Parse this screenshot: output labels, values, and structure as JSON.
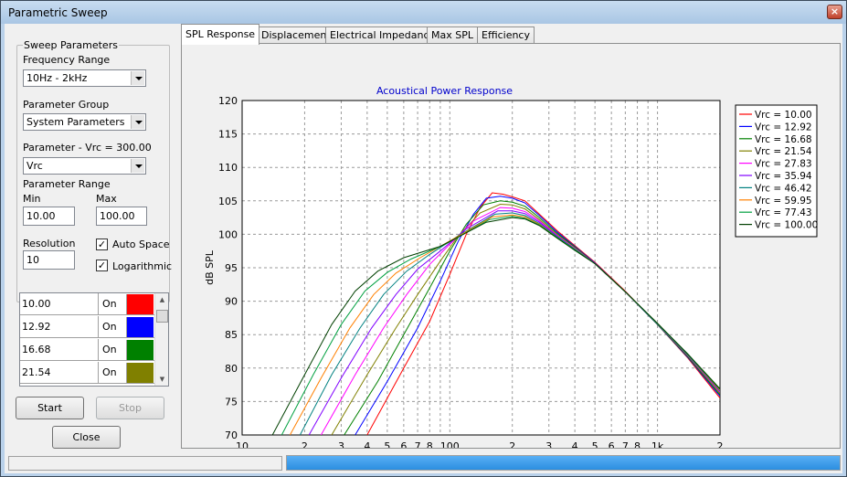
{
  "window": {
    "title": "Parametric Sweep",
    "close_glyph": "×"
  },
  "sweep": {
    "legend": "Sweep Parameters",
    "freq_range_label": "Frequency Range",
    "freq_range_value": "10Hz  - 2kHz",
    "param_group_label": "Parameter Group",
    "param_group_value": "System Parameters",
    "param_label": "Parameter - Vrc = 300.00",
    "param_value": "Vrc",
    "range_label": "Parameter Range",
    "min_label": "Min",
    "max_label": "Max",
    "min_value": "10.00",
    "max_value": "100.00",
    "resolution_label": "Resolution",
    "resolution_value": "10",
    "auto_space_label": "Auto Space",
    "auto_space_checked": true,
    "logarithmic_label": "Logarithmic",
    "logarithmic_checked": true
  },
  "list": {
    "rows": [
      {
        "value": "10.00",
        "state": "On",
        "color": "#ff0000"
      },
      {
        "value": "12.92",
        "state": "On",
        "color": "#0000ff"
      },
      {
        "value": "16.68",
        "state": "On",
        "color": "#008000"
      },
      {
        "value": "21.54",
        "state": "On",
        "color": "#808000"
      }
    ]
  },
  "buttons": {
    "start": "Start",
    "stop": "Stop",
    "close": "Close"
  },
  "tabs": [
    "SPL Response",
    "Displacement",
    "Electrical Impedance",
    "Max SPL",
    "Efficiency"
  ],
  "chart_data": {
    "type": "line",
    "title": "Acoustical Power Response",
    "xlabel": "",
    "ylabel": "dB SPL",
    "xscale": "log",
    "xlim": [
      10,
      2000
    ],
    "ylim": [
      70,
      120
    ],
    "yticks": [
      70,
      75,
      80,
      85,
      90,
      95,
      100,
      105,
      110,
      115,
      120
    ],
    "xtick_labels": [
      {
        "x": 10,
        "label": "10"
      },
      {
        "x": 20,
        "label": "2"
      },
      {
        "x": 30,
        "label": "3"
      },
      {
        "x": 40,
        "label": "4"
      },
      {
        "x": 50,
        "label": "5"
      },
      {
        "x": 60,
        "label": "6"
      },
      {
        "x": 70,
        "label": "7"
      },
      {
        "x": 80,
        "label": "8"
      },
      {
        "x": 100,
        "label": "100"
      },
      {
        "x": 200,
        "label": "2"
      },
      {
        "x": 300,
        "label": "3"
      },
      {
        "x": 400,
        "label": "4"
      },
      {
        "x": 500,
        "label": "5"
      },
      {
        "x": 600,
        "label": "6"
      },
      {
        "x": 700,
        "label": "7"
      },
      {
        "x": 800,
        "label": "8"
      },
      {
        "x": 1000,
        "label": "1k"
      },
      {
        "x": 2000,
        "label": "2"
      }
    ],
    "grid": true,
    "legend_position": "right",
    "series": [
      {
        "name": "Vrc = 10.00",
        "color": "#ff0000",
        "x": [
          40,
          60,
          80,
          100,
          120,
          140,
          160,
          180,
          200,
          230,
          270,
          330,
          400,
          500,
          700,
          1000,
          1400,
          2000
        ],
        "y": [
          70,
          80,
          87,
          94,
          100,
          104,
          106.2,
          106,
          105.6,
          105,
          103,
          100.5,
          98.3,
          95.8,
          91.5,
          86.5,
          81.5,
          75.5
        ]
      },
      {
        "name": "Vrc = 12.92",
        "color": "#0000ff",
        "x": [
          35,
          50,
          70,
          90,
          110,
          130,
          150,
          175,
          200,
          230,
          270,
          330,
          400,
          500,
          700,
          1000,
          1400,
          2000
        ],
        "y": [
          70,
          78,
          86,
          93,
          99,
          103,
          105.4,
          105.7,
          105.4,
          104.7,
          102.8,
          100.3,
          98.2,
          95.7,
          91.4,
          86.5,
          81.6,
          75.8
        ]
      },
      {
        "name": "Vrc = 16.68",
        "color": "#008000",
        "x": [
          31,
          45,
          60,
          80,
          100,
          120,
          145,
          175,
          200,
          230,
          270,
          330,
          400,
          500,
          700,
          1000,
          1400,
          2000
        ],
        "y": [
          70,
          78,
          85,
          92,
          97.5,
          101.5,
          104.4,
          105.0,
          104.8,
          104.2,
          102.5,
          100.1,
          98.1,
          95.6,
          91.4,
          86.5,
          81.7,
          76.0
        ]
      },
      {
        "name": "Vrc = 21.54",
        "color": "#808000",
        "x": [
          27,
          40,
          55,
          70,
          90,
          110,
          140,
          175,
          200,
          230,
          270,
          330,
          400,
          500,
          700,
          1000,
          1400,
          2000
        ],
        "y": [
          70,
          79,
          86,
          91,
          96,
          99.8,
          103.2,
          104.5,
          104.4,
          103.8,
          102.2,
          99.9,
          98.0,
          95.6,
          91.4,
          86.6,
          81.8,
          76.2
        ]
      },
      {
        "name": "Vrc = 27.83",
        "color": "#ff00ff",
        "x": [
          24,
          35,
          48,
          62,
          80,
          100,
          130,
          175,
          200,
          230,
          270,
          330,
          400,
          500,
          700,
          1000,
          1400,
          2000
        ],
        "y": [
          70,
          79,
          86,
          91,
          95.5,
          98.5,
          102,
          104.0,
          103.9,
          103.4,
          102.0,
          99.8,
          97.9,
          95.6,
          91.4,
          86.6,
          81.9,
          76.4
        ]
      },
      {
        "name": "Vrc = 35.94",
        "color": "#8000ff",
        "x": [
          21,
          30,
          42,
          55,
          70,
          90,
          120,
          170,
          200,
          230,
          270,
          330,
          400,
          500,
          700,
          1000,
          1400,
          2000
        ],
        "y": [
          70,
          78.5,
          86,
          91,
          94.8,
          97.5,
          100.8,
          103.5,
          103.5,
          103.1,
          101.8,
          99.7,
          97.8,
          95.6,
          91.4,
          86.6,
          81.9,
          76.5
        ]
      },
      {
        "name": "Vrc = 46.42",
        "color": "#008080",
        "x": [
          19,
          27,
          37,
          48,
          62,
          80,
          110,
          165,
          200,
          230,
          270,
          330,
          400,
          500,
          700,
          1000,
          1400,
          2000
        ],
        "y": [
          70,
          79,
          86,
          91,
          94.5,
          97,
          99.8,
          103.0,
          103.2,
          102.8,
          101.6,
          99.6,
          97.8,
          95.6,
          91.4,
          86.6,
          82.0,
          76.6
        ]
      },
      {
        "name": "Vrc = 59.95",
        "color": "#ff8000",
        "x": [
          17,
          24,
          33,
          43,
          55,
          72,
          100,
          160,
          200,
          230,
          270,
          330,
          400,
          500,
          700,
          1000,
          1400,
          2000
        ],
        "y": [
          70,
          78.5,
          86,
          91,
          94.2,
          96.5,
          99,
          102.6,
          102.9,
          102.6,
          101.5,
          99.5,
          97.7,
          95.6,
          91.4,
          86.7,
          82.0,
          76.7
        ]
      },
      {
        "name": "Vrc = 77.43",
        "color": "#00a040",
        "x": [
          15.5,
          22,
          30,
          39,
          50,
          65,
          95,
          155,
          200,
          230,
          270,
          330,
          400,
          500,
          700,
          1000,
          1400,
          2000
        ],
        "y": [
          70,
          79,
          86.5,
          91.5,
          94.3,
          96.3,
          98.5,
          102.2,
          102.7,
          102.4,
          101.4,
          99.5,
          97.7,
          95.6,
          91.4,
          86.7,
          82.0,
          76.8
        ]
      },
      {
        "name": "Vrc = 100.00",
        "color": "#004000",
        "x": [
          14,
          20,
          27,
          35,
          45,
          60,
          90,
          150,
          200,
          230,
          270,
          330,
          400,
          500,
          700,
          1000,
          1400,
          2000
        ],
        "y": [
          70,
          79,
          86.5,
          91.5,
          94.5,
          96.5,
          98.2,
          101.8,
          102.5,
          102.3,
          101.3,
          99.4,
          97.6,
          95.6,
          91.4,
          86.7,
          82.1,
          76.9
        ]
      }
    ]
  }
}
